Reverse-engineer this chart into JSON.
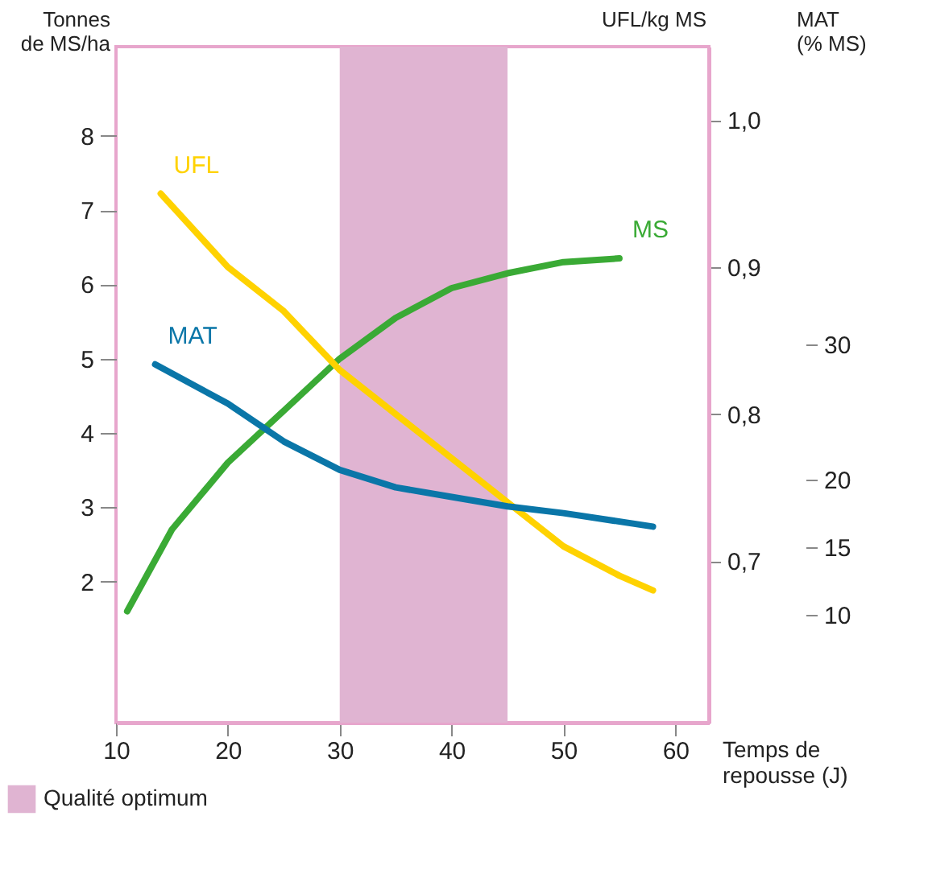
{
  "chart_data": {
    "type": "line",
    "xlabel": "Temps de\nrepousse (J)",
    "ylabel": "Tonnes\nde MS/ha",
    "y2label": "UFL/kg MS",
    "y3label": "MAT\n(% MS)",
    "xlim": [
      10,
      63
    ],
    "xticks": [
      10,
      20,
      30,
      40,
      50,
      60
    ],
    "ylim": [
      0.1,
      9.2
    ],
    "yticks": [
      2,
      3,
      4,
      5,
      6,
      7,
      8
    ],
    "y2lim": [
      0.59,
      1.05
    ],
    "y2ticks": [
      {
        "value": 0.7,
        "label": "0,7"
      },
      {
        "value": 0.8,
        "label": "0,8"
      },
      {
        "value": 0.9,
        "label": "0,9"
      },
      {
        "value": 1.0,
        "label": "1,0"
      }
    ],
    "y3lim": [
      2,
      52
    ],
    "y3ticks": [
      10,
      15,
      20,
      30
    ],
    "series": [
      {
        "name": "MS",
        "color": "#3aaa35",
        "x": [
          11,
          15,
          20,
          25,
          30,
          35,
          40,
          45,
          50,
          55
        ],
        "values": [
          1.6,
          2.7,
          3.6,
          4.3,
          5.0,
          5.55,
          5.95,
          6.15,
          6.3,
          6.35
        ]
      },
      {
        "name": "UFL",
        "color": "#ffd200",
        "axis": "y2",
        "x": [
          14,
          20,
          25,
          30,
          35,
          40,
          45,
          50,
          55,
          58
        ],
        "values": [
          0.95,
          0.9,
          0.87,
          0.83,
          0.8,
          0.77,
          0.74,
          0.71,
          0.69,
          0.68
        ]
      },
      {
        "name": "MAT",
        "color": "#0a76a8",
        "axis": "y3",
        "x": [
          13.5,
          20,
          25,
          30,
          35,
          40,
          45,
          50,
          58
        ],
        "values": [
          28.5,
          25.6,
          22.8,
          20.7,
          19.4,
          18.7,
          18.0,
          17.5,
          16.5
        ]
      }
    ],
    "bands": [
      {
        "axis": "x",
        "from": 30,
        "to": 45,
        "label": "Qualité optimum",
        "color": "#e0b4d2"
      }
    ],
    "legend": "bottom left"
  }
}
